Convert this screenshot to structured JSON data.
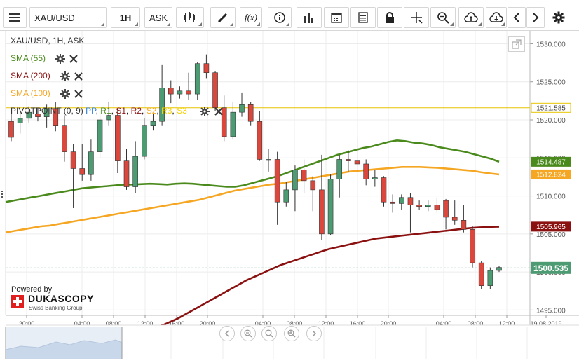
{
  "toolbar": {
    "symbol": "XAU/USD",
    "timeframe": "1H",
    "side": "ASK",
    "indicator_label": "f(x)"
  },
  "chart_header": "XAU/USD, 1H, ASK",
  "indicators": [
    {
      "label": "SMA (55)",
      "color": "#4a8a1c"
    },
    {
      "label": "SMA (200)",
      "color": "#8b1111"
    },
    {
      "label": "SMA (100)",
      "color": "#f5a623"
    }
  ],
  "pivot": {
    "prefix": "PIVOTPOINT (0, 9)",
    "items": [
      {
        "label": "PP",
        "color": "#2f7fd8"
      },
      {
        "label": "R1",
        "color": "#4a8a1c"
      },
      {
        "label": "S1",
        "color": "#8b1111"
      },
      {
        "label": "R2",
        "color": "#8b1111"
      },
      {
        "label": "S2",
        "color": "#f5a623"
      },
      {
        "label": "R3",
        "color": "#f5d000"
      },
      {
        "label": "S3",
        "color": "#f5d000"
      }
    ],
    "level": 1521.585,
    "color": "#e8c400"
  },
  "branding": {
    "powered_by": "Powered by",
    "name": "DUKASCOPY",
    "tagline": "Swiss Banking Group"
  },
  "colors": {
    "up": "#4d9b72",
    "down": "#d9473d",
    "sma55": "#4a8a1c",
    "sma100": "#f5a623",
    "sma200": "#8b1111"
  },
  "chart_data": {
    "type": "candlestick",
    "y_ticks": [
      "1530.000",
      "1525.000",
      "1520.000",
      "1515.000",
      "1510.000",
      "1505.000",
      "1500.000",
      "1495.000"
    ],
    "x_ticks": [
      "20:00",
      "04:00",
      "08:00",
      "12:00",
      "16:00",
      "20:00",
      "04:00",
      "08:00",
      "12:00",
      "16:00",
      "20:00",
      "04:00",
      "08:00",
      "12:00",
      "19.08.2019"
    ],
    "ylim": [
      1494.3,
      1531.7
    ],
    "price_labels": [
      {
        "text": "1521.585",
        "value": 1521.585,
        "bg": "#ffffff",
        "fg": "#444444",
        "border": "#e8c400"
      },
      {
        "text": "1514.487",
        "value": 1514.487,
        "bg": "#4a8a1c",
        "fg": "#ffffff",
        "border": "#4a8a1c"
      },
      {
        "text": "1512.824",
        "value": 1512.824,
        "bg": "#f5a623",
        "fg": "#ffffff",
        "border": "#f5a623"
      },
      {
        "text": "1505.965",
        "value": 1505.965,
        "bg": "#8b1111",
        "fg": "#ffffff",
        "border": "#8b1111"
      },
      {
        "text": "1500.535",
        "value": 1500.535,
        "bg": "#4d9b72",
        "fg": "#ffffff",
        "border": "#4d9b72"
      }
    ],
    "current_price": 1500.535,
    "candles": [
      [
        1519.8,
        1517.7,
        1520.8,
        1517.2
      ],
      [
        1519.6,
        1520.2,
        1520.8,
        1518.2
      ],
      [
        1520.2,
        1521.0,
        1521.8,
        1519.6
      ],
      [
        1520.8,
        1520.4,
        1521.6,
        1519.8
      ],
      [
        1520.4,
        1521.5,
        1522.0,
        1519.0
      ],
      [
        1521.5,
        1519.2,
        1522.3,
        1518.5
      ],
      [
        1519.2,
        1515.8,
        1520.6,
        1514.5
      ],
      [
        1515.8,
        1513.6,
        1516.8,
        1508.4
      ],
      [
        1513.6,
        1512.8,
        1516.8,
        1512.0
      ],
      [
        1512.8,
        1515.8,
        1517.4,
        1512.0
      ],
      [
        1515.8,
        1520.0,
        1521.2,
        1515.0
      ],
      [
        1520.0,
        1520.6,
        1522.4,
        1519.2
      ],
      [
        1520.6,
        1514.6,
        1521.4,
        1513.0
      ],
      [
        1514.6,
        1511.2,
        1516.2,
        1510.8
      ],
      [
        1511.2,
        1515.2,
        1517.2,
        1510.4
      ],
      [
        1515.2,
        1519.2,
        1520.2,
        1514.8
      ],
      [
        1519.2,
        1519.8,
        1520.8,
        1518.6
      ],
      [
        1519.8,
        1524.2,
        1527.2,
        1519.2
      ],
      [
        1524.2,
        1523.4,
        1525.2,
        1522.2
      ],
      [
        1523.4,
        1523.8,
        1524.4,
        1522.8
      ],
      [
        1523.8,
        1523.4,
        1526.2,
        1522.6
      ],
      [
        1523.4,
        1527.4,
        1527.6,
        1522.6
      ],
      [
        1527.4,
        1526.2,
        1528.6,
        1525.4
      ],
      [
        1526.2,
        1521.6,
        1526.4,
        1521.2
      ],
      [
        1521.6,
        1517.8,
        1523.2,
        1517.2
      ],
      [
        1517.8,
        1521.0,
        1522.4,
        1517.4
      ],
      [
        1521.0,
        1522.0,
        1523.6,
        1520.4
      ],
      [
        1522.0,
        1519.8,
        1522.4,
        1519.2
      ],
      [
        1519.8,
        1514.8,
        1521.2,
        1514.6
      ],
      [
        1514.8,
        1514.8,
        1516.2,
        1513.2
      ],
      [
        1514.8,
        1509.2,
        1515.8,
        1506.2
      ],
      [
        1509.2,
        1510.8,
        1511.8,
        1508.6
      ],
      [
        1510.8,
        1513.4,
        1514.0,
        1508.0
      ],
      [
        1513.4,
        1512.0,
        1514.8,
        1510.4
      ],
      [
        1512.0,
        1510.8,
        1512.6,
        1508.0
      ],
      [
        1510.8,
        1505.0,
        1515.4,
        1504.2
      ],
      [
        1505.0,
        1512.2,
        1512.8,
        1504.8
      ],
      [
        1512.2,
        1514.8,
        1515.4,
        1509.8
      ],
      [
        1514.8,
        1514.6,
        1516.0,
        1513.2
      ],
      [
        1514.6,
        1514.2,
        1517.6,
        1513.2
      ],
      [
        1514.2,
        1512.2,
        1514.8,
        1511.4
      ],
      [
        1512.2,
        1512.4,
        1513.4,
        1511.2
      ],
      [
        1512.4,
        1509.2,
        1512.6,
        1508.6
      ],
      [
        1509.2,
        1509.0,
        1510.2,
        1507.8
      ],
      [
        1509.0,
        1509.8,
        1510.2,
        1508.2
      ],
      [
        1509.8,
        1508.8,
        1510.4,
        1505.2
      ],
      [
        1508.8,
        1508.6,
        1509.4,
        1508.2
      ],
      [
        1508.6,
        1508.8,
        1509.4,
        1508.0
      ],
      [
        1508.8,
        1508.2,
        1509.8,
        1507.8
      ],
      [
        1509.4,
        1507.2,
        1509.6,
        1505.6
      ],
      [
        1507.2,
        1506.8,
        1509.4,
        1506.2
      ],
      [
        1506.8,
        1505.6,
        1508.8,
        1505.2
      ],
      [
        1505.6,
        1501.2,
        1506.0,
        1500.6
      ],
      [
        1501.2,
        1498.2,
        1501.4,
        1497.8
      ],
      [
        1498.2,
        1500.2,
        1500.6,
        1497.8
      ],
      [
        1500.2,
        1500.6,
        1500.8,
        1500.0
      ]
    ],
    "sma55": [
      1509.2,
      1509.4,
      1509.6,
      1509.8,
      1510.0,
      1510.2,
      1510.4,
      1510.6,
      1510.8,
      1511.0,
      1511.1,
      1511.2,
      1511.3,
      1511.4,
      1511.5,
      1511.5,
      1511.55,
      1511.6,
      1511.55,
      1511.5,
      1511.6,
      1511.65,
      1511.6,
      1511.5,
      1511.4,
      1511.3,
      1511.2,
      1511.2,
      1511.4,
      1511.7,
      1512.0,
      1512.3,
      1512.6,
      1513.0,
      1513.4,
      1513.8,
      1514.2,
      1514.6,
      1515.0,
      1515.4,
      1515.7,
      1516.0,
      1516.3,
      1516.5,
      1516.8,
      1517.1,
      1517.3,
      1517.2,
      1517.0,
      1516.9,
      1516.7,
      1516.4,
      1516.2,
      1516.0,
      1515.8,
      1515.5,
      1515.2,
      1514.9,
      1514.487
    ],
    "sma100": [
      1505.2,
      1505.4,
      1505.6,
      1505.8,
      1506.0,
      1506.1,
      1506.3,
      1506.5,
      1506.7,
      1506.9,
      1507.1,
      1507.3,
      1507.5,
      1507.7,
      1507.9,
      1508.1,
      1508.3,
      1508.5,
      1508.7,
      1508.9,
      1509.1,
      1509.3,
      1509.5,
      1509.8,
      1510.1,
      1510.4,
      1510.7,
      1510.9,
      1511.1,
      1511.3,
      1511.5,
      1511.6,
      1511.8,
      1512.0,
      1512.2,
      1512.4,
      1512.6,
      1512.8,
      1513.0,
      1513.2,
      1513.3,
      1513.4,
      1513.5,
      1513.6,
      1513.7,
      1513.8,
      1513.8,
      1513.8,
      1513.75,
      1513.7,
      1513.6,
      1513.5,
      1513.4,
      1513.3,
      1513.1,
      1512.95,
      1512.824
    ],
    "sma200": [
      1492.5,
      1492.8,
      1493.1,
      1493.5,
      1493.9,
      1494.4,
      1494.9,
      1495.4,
      1495.9,
      1496.4,
      1496.9,
      1497.4,
      1497.9,
      1498.4,
      1498.9,
      1499.3,
      1499.7,
      1500.1,
      1500.5,
      1500.9,
      1501.2,
      1501.5,
      1501.8,
      1502.1,
      1502.4,
      1502.7,
      1503.0,
      1503.2,
      1503.4,
      1503.6,
      1503.8,
      1504.0,
      1504.2,
      1504.4,
      1504.5,
      1504.6,
      1504.7,
      1504.8,
      1504.9,
      1505.0,
      1505.1,
      1505.2,
      1505.3,
      1505.4,
      1505.5,
      1505.6,
      1505.7,
      1505.8,
      1505.85,
      1505.9,
      1505.93,
      1505.965
    ]
  }
}
